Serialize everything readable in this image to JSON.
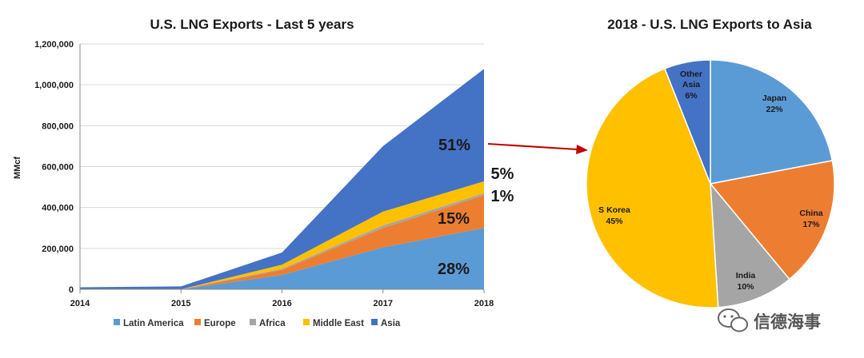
{
  "chart_data": [
    {
      "type": "area",
      "title": "U.S. LNG Exports - Last 5 years",
      "ylabel": "MMcf",
      "xlabel": "",
      "x": [
        "2014",
        "2015",
        "2016",
        "2017",
        "2018"
      ],
      "ylim": [
        0,
        1200000
      ],
      "yticks": [
        "0",
        "200,000",
        "400,000",
        "600,000",
        "800,000",
        "1,000,000",
        "1,200,000"
      ],
      "stacked": true,
      "grid": "horizontal",
      "legend": "bottom",
      "series": [
        {
          "name": "Latin America",
          "color": "#5B9BD5",
          "values": [
            0,
            0,
            70000,
            205000,
            300000
          ]
        },
        {
          "name": "Europe",
          "color": "#ED7D31",
          "values": [
            0,
            0,
            25000,
            95000,
            160000
          ]
        },
        {
          "name": "Africa",
          "color": "#A5A5A5",
          "values": [
            0,
            0,
            5000,
            12000,
            10000
          ]
        },
        {
          "name": "Middle East",
          "color": "#FFC000",
          "values": [
            0,
            0,
            20000,
            68000,
            58000
          ]
        },
        {
          "name": "Asia",
          "color": "#4472C4",
          "values": [
            10000,
            14000,
            60000,
            320000,
            550000
          ]
        }
      ],
      "annotations": [
        "51%",
        "5%",
        "1%",
        "15%",
        "28%"
      ]
    },
    {
      "type": "pie",
      "title": "2018 - U.S. LNG Exports to Asia",
      "slices": [
        {
          "label": "Japan",
          "pct": "22%",
          "value": 22,
          "color": "#5B9BD5"
        },
        {
          "label": "China",
          "pct": "17%",
          "value": 17,
          "color": "#ED7D31"
        },
        {
          "label": "India",
          "pct": "10%",
          "value": 10,
          "color": "#A5A5A5"
        },
        {
          "label": "S Korea",
          "pct": "45%",
          "value": 45,
          "color": "#FFC000"
        },
        {
          "label": "Other Asia",
          "pct": "6%",
          "value": 6,
          "color": "#4472C4"
        }
      ]
    }
  ],
  "arrow_color": "#C00000",
  "watermark": {
    "text": "信德海事",
    "icon": "wechat-icon"
  }
}
